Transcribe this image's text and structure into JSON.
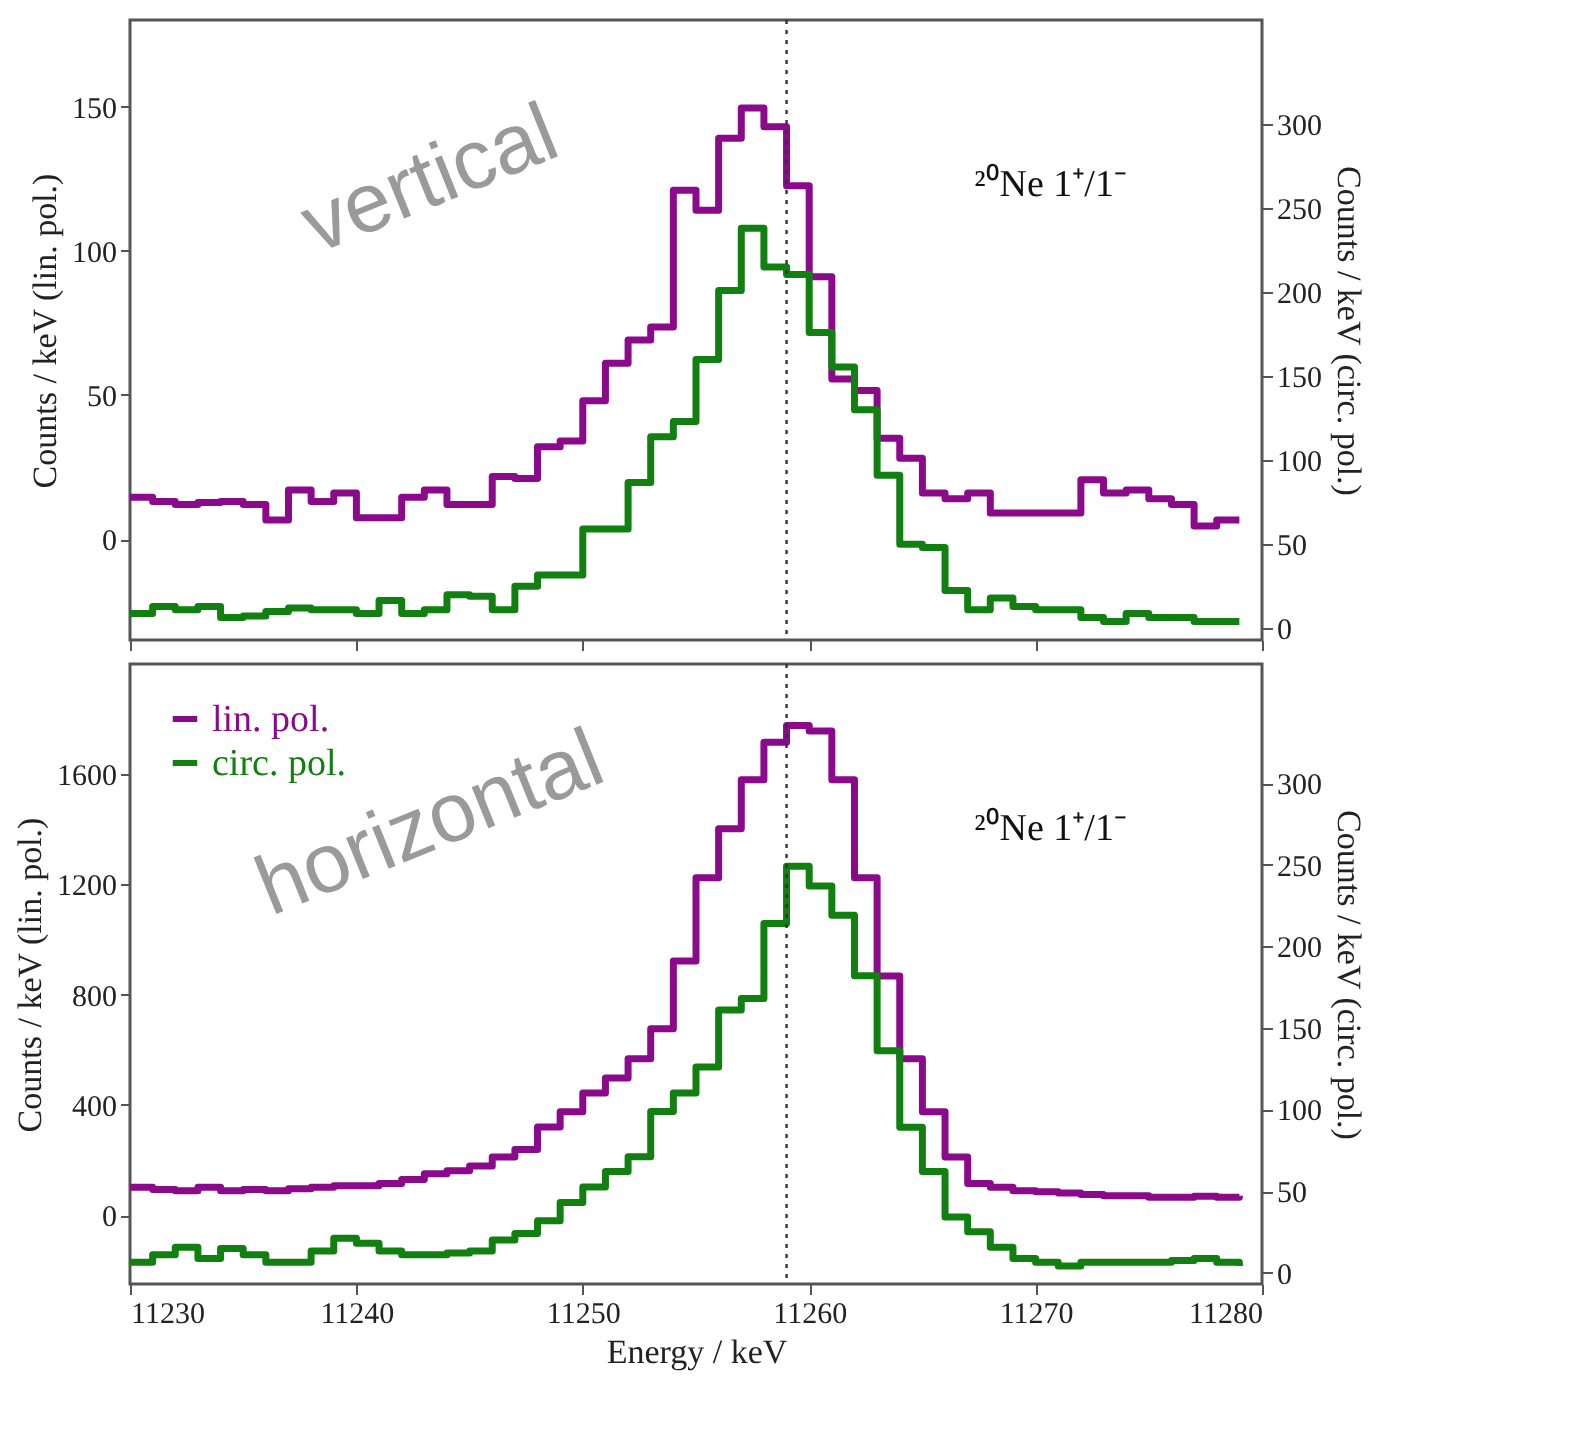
{
  "chart_data": [
    {
      "type": "step",
      "annotations": [
        "vertical",
        "²⁰Ne 1⁺/1⁻"
      ],
      "ylabel": "Counts / keV (lin. pol.)",
      "y2label": "Counts / keV (circ. pol.)",
      "x": [
        11230,
        11231,
        11232,
        11233,
        11234,
        11235,
        11236,
        11237,
        11238,
        11239,
        11240,
        11241,
        11242,
        11243,
        11244,
        11245,
        11246,
        11247,
        11248,
        11249,
        11250,
        11251,
        11252,
        11253,
        11254,
        11255,
        11256,
        11257,
        11258,
        11259,
        11260,
        11261,
        11262,
        11263,
        11264,
        11265,
        11266,
        11267,
        11268,
        11269,
        11270,
        11271,
        11272,
        11273,
        11274,
        11275,
        11276,
        11277,
        11278,
        11279
      ],
      "series": [
        {
          "color": "#8b0a8b",
          "values": [
            14.5,
            13,
            12,
            12.7,
            13,
            12,
            6.6,
            17,
            13,
            16,
            7.4,
            7.4,
            14.5,
            17,
            12,
            12,
            21.7,
            21,
            32,
            34,
            48,
            61,
            69,
            73.5,
            121,
            114,
            139,
            149.5,
            143,
            122.5,
            91,
            55.5,
            51.5,
            35,
            28,
            16,
            14,
            16,
            9,
            9,
            9,
            9,
            20.6,
            16,
            17,
            14,
            12,
            4.5,
            6.6,
            6.6
          ]
        },
        {
          "color": "#118011",
          "axis": "y2",
          "values": [
            8.7,
            13,
            11,
            13,
            6.4,
            7.3,
            10,
            12,
            11,
            11,
            8.7,
            16.5,
            8.7,
            11,
            20,
            19,
            11,
            25,
            31.7,
            31.7,
            59,
            59,
            86.7,
            114,
            123,
            160,
            201,
            238,
            215,
            210.5,
            176,
            155.5,
            130,
            91,
            50,
            48,
            22.5,
            11,
            18,
            13,
            11,
            11,
            6.4,
            4,
            8.7,
            6.4,
            6.4,
            4,
            4,
            4
          ]
        }
      ],
      "xlim": [
        11230,
        11280
      ],
      "xticks": [
        11230,
        11240,
        11250,
        11260,
        11270,
        11280
      ],
      "ylim": [
        -35,
        180
      ],
      "yticks": [
        0,
        50,
        100,
        150
      ],
      "y2lim": [
        -7,
        362
      ],
      "y2ticks": [
        0,
        50,
        100,
        150,
        200,
        250,
        300
      ],
      "tick_labels": "y",
      "ref_lines": [
        {
          "axis": "x",
          "value": 11259,
          "line_style": "dotted"
        }
      ]
    },
    {
      "type": "step",
      "annotations": [
        "horizontal",
        "²⁰Ne 1⁺/1⁻"
      ],
      "xlabel": "Energy / keV",
      "ylabel": "Counts / keV (lin. pol.)",
      "y2label": "Counts / keV (circ. pol.)",
      "x": [
        11230,
        11231,
        11232,
        11233,
        11234,
        11235,
        11236,
        11237,
        11238,
        11239,
        11240,
        11241,
        11242,
        11243,
        11244,
        11245,
        11246,
        11247,
        11248,
        11249,
        11250,
        11251,
        11252,
        11253,
        11254,
        11255,
        11256,
        11257,
        11258,
        11259,
        11260,
        11261,
        11262,
        11263,
        11264,
        11265,
        11266,
        11267,
        11268,
        11269,
        11270,
        11271,
        11272,
        11273,
        11274,
        11275,
        11276,
        11277,
        11278,
        11279
      ],
      "series": [
        {
          "name": "lin. pol.",
          "color": "#8b0a8b",
          "values": [
            101,
            93,
            88,
            101,
            88,
            93,
            88,
            96,
            101,
            107,
            107,
            115,
            129,
            150,
            161,
            178,
            211,
            238,
            320,
            375,
            443,
            498,
            567,
            676,
            922,
            1224,
            1402,
            1580,
            1716,
            1777,
            1757,
            1580,
            1224,
            868,
            567,
            375,
            211,
            115,
            101,
            88,
            85,
            80,
            75,
            70,
            70,
            65,
            65,
            68,
            65,
            70
          ]
        },
        {
          "name": "circ. pol.",
          "color": "#118011",
          "axis": "y2",
          "values": [
            6.4,
            11,
            15.6,
            8.7,
            14.7,
            11,
            6.4,
            6.4,
            13.3,
            21,
            18,
            13.3,
            11,
            11,
            12,
            13.3,
            20,
            24,
            31.8,
            43,
            52.5,
            62,
            71,
            98.7,
            110,
            126,
            161,
            168,
            214,
            249,
            237,
            219,
            182,
            136,
            89,
            62,
            34,
            25,
            15.6,
            8.7,
            6.4,
            4,
            6.4,
            6.4,
            6.4,
            6.4,
            7.4,
            8.7,
            6.4,
            4
          ]
        }
      ],
      "xlim": [
        11230,
        11280
      ],
      "xticks": [
        11230,
        11240,
        11250,
        11260,
        11270,
        11280
      ],
      "ylim": [
        -250,
        2000
      ],
      "yticks": [
        0,
        400,
        800,
        1200,
        1600
      ],
      "y2lim": [
        -7,
        373
      ],
      "y2ticks": [
        0,
        50,
        100,
        150,
        200,
        250,
        300
      ],
      "legend": "top left",
      "ref_lines": [
        {
          "axis": "x",
          "value": 11259,
          "line_style": "dotted"
        }
      ]
    }
  ]
}
